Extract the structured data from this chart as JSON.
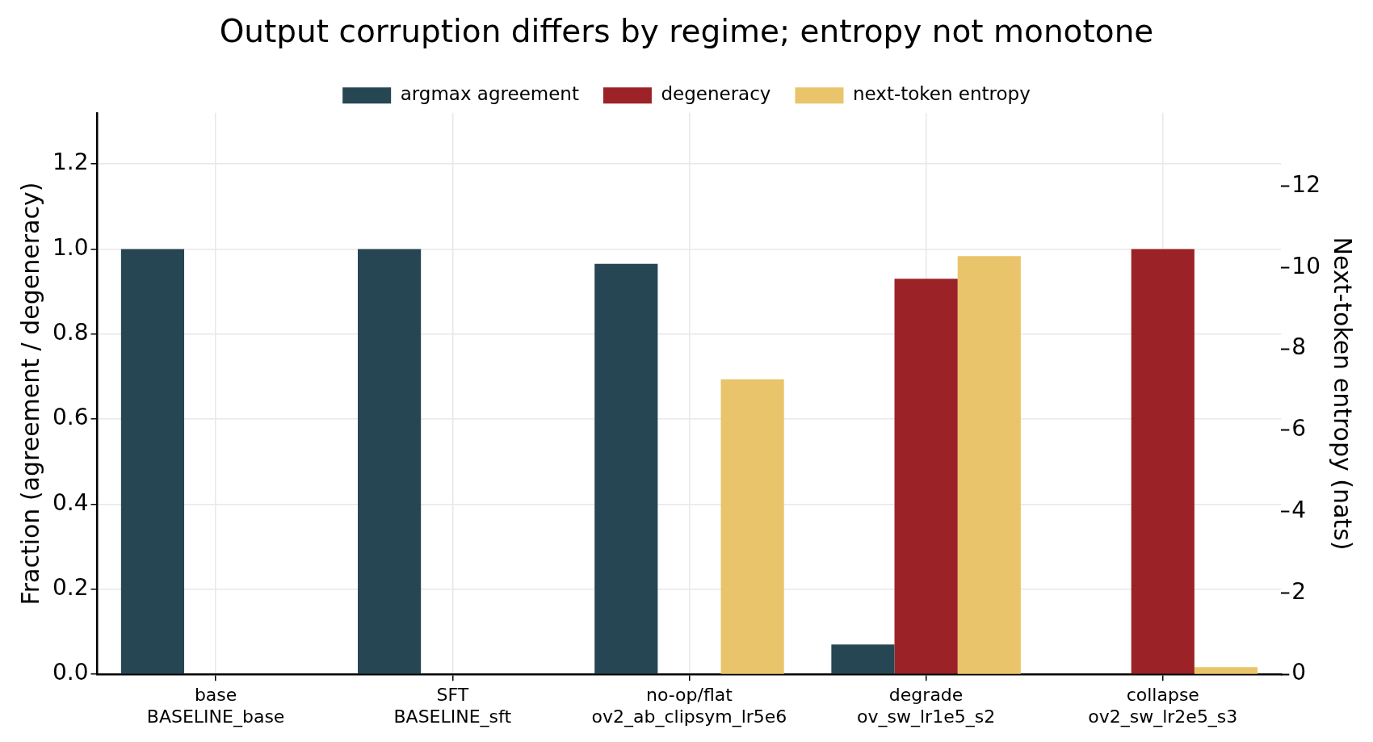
{
  "chart_data": {
    "type": "bar",
    "title": "Output corruption differs by regime; entropy not monotone",
    "ylabel": "Fraction (agreement / degeneracy)",
    "y2label": "Next-token entropy (nats)",
    "categories": [
      "base\nBASELINE_base",
      "SFT\nBASELINE_sft",
      "no-op/flat\nov2_ab_clipsym_lr5e6",
      "degrade\nov_sw_lr1e5_s2",
      "collapse\nov2_sw_lr2e5_s3"
    ],
    "series": [
      {
        "name": "argmax agreement",
        "color": "#264653",
        "values": [
          1.0,
          1.0,
          0.965,
          0.07,
          0
        ]
      },
      {
        "name": "degeneracy",
        "color": "#9b2226",
        "values": [
          0,
          0,
          0,
          0.93,
          1.0
        ]
      },
      {
        "name": "next-token entropy",
        "color": "#e9c46a",
        "axis": "y2",
        "values": [
          0,
          0,
          7.25,
          10.28,
          0.18
        ]
      }
    ],
    "ylim": [
      0,
      1.32
    ],
    "yticks": [
      {
        "value": 0,
        "label": "0.0"
      },
      0.2,
      0.4,
      0.6,
      0.8,
      {
        "value": 1,
        "label": "1.0"
      },
      1.2
    ],
    "y2lim": [
      0,
      13.8
    ],
    "y2ticks": [
      0,
      2,
      4,
      6,
      8,
      10,
      12
    ],
    "grid": true,
    "legend": "top"
  }
}
